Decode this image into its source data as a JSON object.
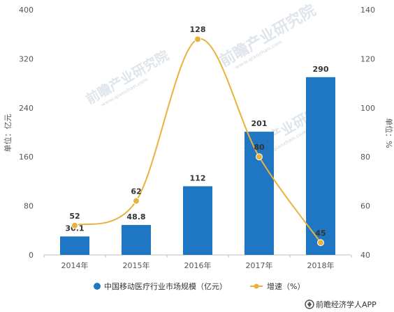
{
  "chart_data": {
    "type": "bar",
    "categories": [
      "2014年",
      "2015年",
      "2016年",
      "2017年",
      "2018年"
    ],
    "series": [
      {
        "name": "中国移动医疗行业市场规模（亿元）",
        "type": "bar",
        "axis": "left",
        "values": [
          30.1,
          48.8,
          112,
          201,
          290
        ],
        "labels": [
          "30.1",
          "48.8",
          "112",
          "201",
          "290"
        ],
        "color": "#1f77c4"
      },
      {
        "name": "增速（%）",
        "type": "line",
        "axis": "right",
        "values": [
          52,
          62,
          128,
          80,
          45
        ],
        "labels": [
          "52",
          "62",
          "128",
          "80",
          "45"
        ],
        "color": "#e8b23c"
      }
    ],
    "ylabel_left": "单位：亿元",
    "ylabel_right": "单位：%",
    "ylim_left": [
      0,
      400
    ],
    "yticks_left": [
      "0",
      "80",
      "160",
      "240",
      "320",
      "400"
    ],
    "ylim_right": [
      40,
      140
    ],
    "yticks_right": [
      "40",
      "60",
      "80",
      "100",
      "120",
      "140"
    ],
    "legend_position": "bottom",
    "grid": false
  },
  "watermark": {
    "main": "前瞻产业研究院",
    "sub": "www.qianzhan.com"
  },
  "credit": "前瞻经济学人APP",
  "colors": {
    "bar": "#1f77c4",
    "line": "#e8b23c",
    "axis": "#bfbfbf",
    "watermark": "#dfe5ea"
  }
}
